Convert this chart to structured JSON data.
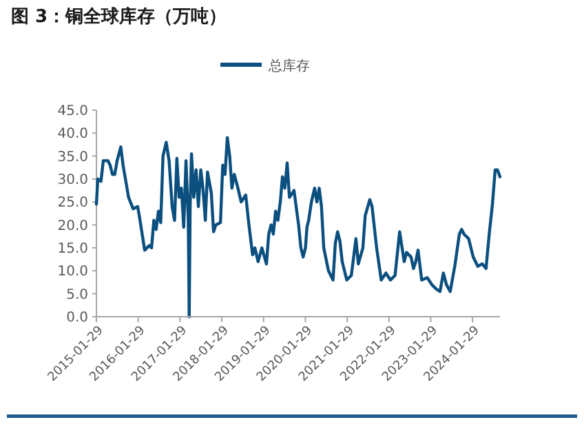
{
  "chart_data": {
    "type": "line",
    "title": "图 3：铜全球库存（万吨）",
    "x": [
      "2015-01-29",
      "2015-02-10",
      "2015-03-10",
      "2015-03-30",
      "2015-05-09",
      "2015-05-29",
      "2015-06-18",
      "2015-07-08",
      "2015-07-29",
      "2015-08-30",
      "2015-09-19",
      "2015-11-06",
      "2015-12-16",
      "2016-01-25",
      "2016-02-14",
      "2016-03-26",
      "2016-05-05",
      "2016-05-25",
      "2016-06-14",
      "2016-07-04",
      "2016-07-24",
      "2016-08-13",
      "2016-09-02",
      "2016-09-30",
      "2016-10-25",
      "2016-11-21",
      "2016-12-12",
      "2017-01-01",
      "2017-01-21",
      "2017-02-10",
      "2017-03-02",
      "2017-03-22",
      "2017-04-11",
      "2017-04-19",
      "2017-04-27",
      "2017-05-09",
      "2017-05-29",
      "2017-06-18",
      "2017-07-08",
      "2017-07-29",
      "2017-08-17",
      "2017-09-07",
      "2017-09-26",
      "2017-10-29",
      "2017-11-18",
      "2017-12-08",
      "2018-01-17",
      "2018-02-06",
      "2018-02-26",
      "2018-03-18",
      "2018-04-08",
      "2018-04-27",
      "2018-05-18",
      "2018-06-14",
      "2018-07-17",
      "2018-08-26",
      "2018-09-23",
      "2018-10-25",
      "2018-11-14",
      "2018-12-12",
      "2019-01-14",
      "2019-02-23",
      "2019-03-15",
      "2019-04-05",
      "2019-04-24",
      "2019-05-14",
      "2019-06-03",
      "2019-06-24",
      "2019-07-13",
      "2019-08-03",
      "2019-08-23",
      "2019-09-12",
      "2019-10-22",
      "2019-12-01",
      "2019-12-21",
      "2020-01-10",
      "2020-01-30",
      "2020-02-12",
      "2020-02-27",
      "2020-03-22",
      "2020-04-19",
      "2020-05-09",
      "2020-05-29",
      "2020-06-18",
      "2020-07-08",
      "2020-08-18",
      "2020-09-27",
      "2020-10-17",
      "2020-11-06",
      "2020-11-26",
      "2020-12-16",
      "2021-01-25",
      "2021-03-06",
      "2021-04-15",
      "2021-05-06",
      "2021-06-15",
      "2021-07-05",
      "2021-08-14",
      "2021-09-03",
      "2021-10-13",
      "2021-11-22",
      "2022-01-02",
      "2022-02-11",
      "2022-03-23",
      "2022-05-02",
      "2022-06-11",
      "2022-07-01",
      "2022-08-10",
      "2022-08-31",
      "2022-09-20",
      "2022-10-10",
      "2022-11-11",
      "2022-12-29",
      "2023-02-07",
      "2023-03-19",
      "2023-04-20",
      "2023-05-19",
      "2023-06-15",
      "2023-07-18",
      "2023-08-27",
      "2023-10-06",
      "2023-10-26",
      "2023-11-15",
      "2023-12-26",
      "2024-02-04",
      "2024-03-15",
      "2024-04-24",
      "2024-05-26",
      "2024-06-23",
      "2024-07-21",
      "2024-08-14",
      "2024-09-03",
      "2024-09-25"
    ],
    "series": [
      {
        "name": "总库存",
        "color": "#0b4f7f",
        "values": [
          24.5,
          30,
          29.5,
          34,
          34,
          33,
          31,
          31,
          34,
          37,
          33,
          26,
          23.5,
          24,
          21,
          14.5,
          15.5,
          15,
          21,
          19,
          23,
          20.5,
          35,
          38,
          34,
          24,
          21,
          34.5,
          26,
          28,
          19.5,
          34,
          21,
          0,
          24,
          35.5,
          26,
          32,
          24,
          32,
          28,
          21,
          31.5,
          27,
          18.5,
          20,
          20.5,
          33,
          31,
          39,
          35,
          28,
          31,
          28.5,
          25,
          26.5,
          20,
          13.5,
          15,
          12,
          15,
          11.5,
          18,
          20,
          18,
          23,
          21,
          25,
          30.5,
          28,
          33.5,
          26,
          27.5,
          20,
          15,
          13,
          15,
          19.5,
          21,
          25,
          28,
          25,
          28,
          24,
          15,
          10,
          8,
          16,
          18.5,
          16.5,
          12,
          8,
          9,
          17,
          11.5,
          15,
          22,
          25.5,
          24,
          15,
          8,
          9.5,
          8,
          9,
          18.5,
          12,
          14,
          13,
          10.5,
          12,
          14.5,
          8,
          8.5,
          7,
          6,
          5.5,
          9.5,
          7,
          5.5,
          11,
          18,
          19,
          18,
          17,
          13,
          11,
          11.5,
          10.5,
          18,
          24.5,
          32,
          32,
          30.5
        ]
      }
    ],
    "xlim": [
      "2015-01-29",
      "2024-09-25"
    ],
    "xticks": [
      {
        "value": "2015-01-29",
        "label": "2015-01-29"
      },
      {
        "value": "2016-01-29",
        "label": "2016-01-29"
      },
      {
        "value": "2017-01-29",
        "label": "2017-01-29"
      },
      {
        "value": "2018-01-29",
        "label": "2018-01-29"
      },
      {
        "value": "2019-01-29",
        "label": "2019-01-29"
      },
      {
        "value": "2020-01-29",
        "label": "2020-01-29"
      },
      {
        "value": "2021-01-29",
        "label": "2021-01-29"
      },
      {
        "value": "2022-01-29",
        "label": "2022-01-29"
      },
      {
        "value": "2023-01-29",
        "label": "2023-01-29"
      },
      {
        "value": "2024-01-29",
        "label": "2024-01-29"
      }
    ],
    "ylim": [
      0,
      45
    ],
    "yticks": [
      {
        "value": 0,
        "label": "0.0"
      },
      {
        "value": 5,
        "label": "5.0"
      },
      {
        "value": 10,
        "label": "10.0"
      },
      {
        "value": 15,
        "label": "15.0"
      },
      {
        "value": 20,
        "label": "20.0"
      },
      {
        "value": 25,
        "label": "25.0"
      },
      {
        "value": 30,
        "label": "30.0"
      },
      {
        "value": 35,
        "label": "35.0"
      },
      {
        "value": 40,
        "label": "40.0"
      },
      {
        "value": 45,
        "label": "45.0"
      }
    ],
    "grid": false,
    "legend": "top",
    "line_style": "solid",
    "marker": "none"
  }
}
